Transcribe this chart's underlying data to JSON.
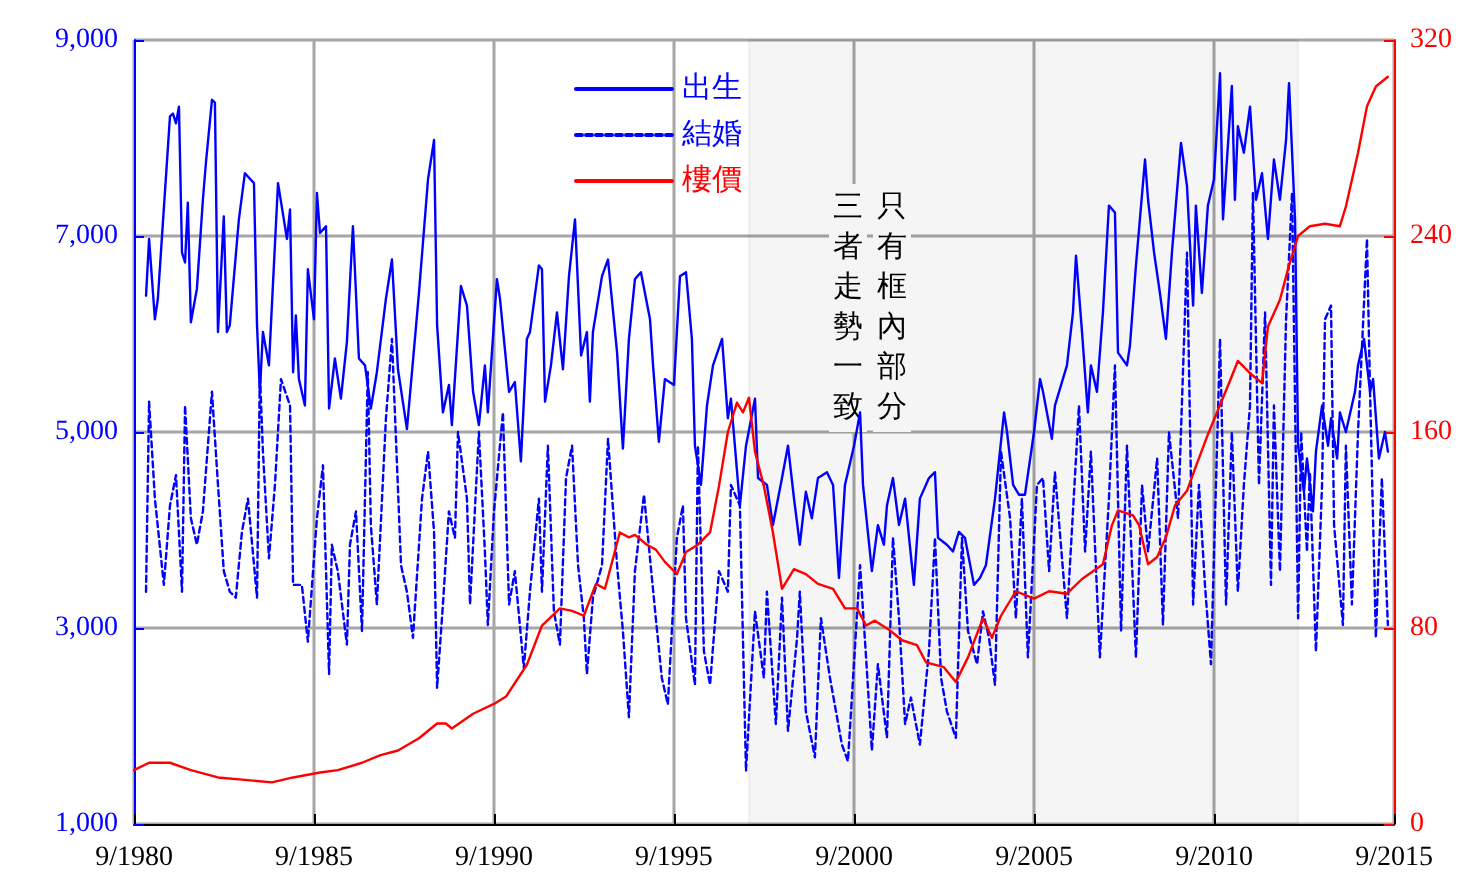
{
  "chart_data": {
    "type": "line",
    "marker": "none",
    "grid": true,
    "legend": "top",
    "xlim": [
      "1980-09",
      "2015-09"
    ],
    "xticks": [
      {
        "value": "1980-09",
        "label": "9/1980"
      },
      {
        "value": "1985-09",
        "label": "9/1985"
      },
      {
        "value": "1990-09",
        "label": "9/1990"
      },
      {
        "value": "1995-09",
        "label": "9/1995"
      },
      {
        "value": "2000-09",
        "label": "9/2000"
      },
      {
        "value": "2005-09",
        "label": "9/2005"
      },
      {
        "value": "2010-09",
        "label": "9/2010"
      },
      {
        "value": "2015-09",
        "label": "9/2015"
      }
    ],
    "ylim": [
      1000,
      9000
    ],
    "yticks": [
      {
        "value": 1000,
        "label": "1,000"
      },
      {
        "value": 3000,
        "label": "3,000"
      },
      {
        "value": 5000,
        "label": "5,000"
      },
      {
        "value": 7000,
        "label": "7,000"
      },
      {
        "value": 9000,
        "label": "9,000"
      }
    ],
    "y2lim": [
      0,
      320
    ],
    "y2ticks": [
      0,
      80,
      160,
      240,
      320
    ],
    "bands": [
      {
        "axis": "x",
        "from": "1997-10",
        "to": "2013-01",
        "color": "#000000"
      }
    ],
    "annotations": [
      "只有框內部分",
      "三者走勢一致"
    ],
    "series": [
      {
        "name": "出生",
        "color": "#0000ff",
        "x": [
          "1981-01",
          "1981-02",
          "1981-04",
          "1981-05",
          "1981-09",
          "1981-10",
          "1981-11",
          "1981-12",
          "1982-01",
          "1982-02",
          "1982-03",
          "1982-04",
          "1982-06",
          "1982-08",
          "1982-09",
          "1982-11",
          "1982-12",
          "1983-01",
          "1983-03",
          "1983-04",
          "1983-05",
          "1983-08",
          "1983-10",
          "1984-01",
          "1984-02",
          "1984-03",
          "1984-04",
          "1984-06",
          "1984-07",
          "1984-09",
          "1984-12",
          "1985-01",
          "1985-02",
          "1985-03",
          "1985-04",
          "1985-06",
          "1985-07",
          "1985-09",
          "1985-10",
          "1985-11",
          "1986-01",
          "1986-02",
          "1986-04",
          "1986-06",
          "1986-08",
          "1986-10",
          "1986-12",
          "1987-02",
          "1987-04",
          "1987-06",
          "1987-09",
          "1987-11",
          "1988-01",
          "1988-04",
          "1988-08",
          "1988-11",
          "1989-01",
          "1989-02",
          "1989-04",
          "1989-06",
          "1989-07",
          "1989-10",
          "1989-12",
          "1990-02",
          "1990-04",
          "1990-06",
          "1990-07",
          "1990-10",
          "1990-11",
          "1991-02",
          "1991-04",
          "1991-06",
          "1991-08",
          "1991-09",
          "1991-12",
          "1992-01",
          "1992-02",
          "1992-04",
          "1992-06",
          "1992-08",
          "1992-10",
          "1992-12",
          "1993-02",
          "1993-04",
          "1993-05",
          "1993-06",
          "1993-09",
          "1993-11",
          "1994-02",
          "1994-04",
          "1994-06",
          "1994-08",
          "1994-10",
          "1995-01",
          "1995-02",
          "1995-04",
          "1995-06",
          "1995-09",
          "1995-11",
          "1996-01",
          "1996-03",
          "1996-04",
          "1996-06",
          "1996-08",
          "1996-10",
          "1997-01",
          "1997-03",
          "1997-04",
          "1997-07",
          "1997-09",
          "1997-12",
          "1998-01",
          "1998-04",
          "1998-06",
          "1998-09",
          "1998-11",
          "1999-01",
          "1999-03",
          "1999-05",
          "1999-07",
          "1999-09",
          "1999-12",
          "2000-02",
          "2000-04",
          "2000-06",
          "2000-09",
          "2000-11",
          "2000-12",
          "2001-03",
          "2001-05",
          "2001-07",
          "2001-08",
          "2001-10",
          "2001-12",
          "2002-02",
          "2002-05",
          "2002-07",
          "2002-10",
          "2002-12",
          "2003-01",
          "2003-04",
          "2003-06",
          "2003-08",
          "2003-10",
          "2004-01",
          "2004-03",
          "2004-05",
          "2004-08",
          "2004-11",
          "2004-12",
          "2005-02",
          "2005-04",
          "2005-06",
          "2005-09",
          "2005-11",
          "2005-12",
          "2006-03",
          "2006-04",
          "2006-08",
          "2006-10",
          "2006-11",
          "2007-01",
          "2007-03",
          "2007-04",
          "2007-06",
          "2007-08",
          "2007-10",
          "2007-12",
          "2008-01",
          "2008-04",
          "2008-05",
          "2008-07",
          "2008-10",
          "2008-11",
          "2009-01",
          "2009-03",
          "2009-05",
          "2009-07",
          "2009-10",
          "2009-12",
          "2010-02",
          "2010-03",
          "2010-05",
          "2010-07",
          "2010-09",
          "2010-11",
          "2010-12",
          "2011-03",
          "2011-04",
          "2011-05",
          "2011-07",
          "2011-09",
          "2011-11",
          "2012-01",
          "2012-03",
          "2012-05",
          "2012-07",
          "2012-09",
          "2012-10",
          "2012-12",
          "2013-01",
          "2013-03",
          "2013-04",
          "2013-06",
          "2013-07",
          "2013-09",
          "2013-11",
          "2013-12",
          "2014-02",
          "2014-03",
          "2014-05",
          "2014-08",
          "2014-09",
          "2014-11",
          "2015-01",
          "2015-02",
          "2015-04",
          "2015-06",
          "2015-07"
        ],
        "values": [
          6390,
          6970,
          6150,
          6360,
          8220,
          8250,
          8150,
          8320,
          6830,
          6730,
          7340,
          6120,
          6460,
          7370,
          7750,
          8390,
          8360,
          6020,
          7200,
          6020,
          6090,
          7170,
          7640,
          7540,
          6090,
          5410,
          6020,
          5680,
          6290,
          7540,
          6970,
          7270,
          5610,
          6190,
          5540,
          5270,
          6660,
          6150,
          7440,
          7030,
          7100,
          5240,
          5750,
          5340,
          5920,
          7100,
          5750,
          5680,
          5240,
          5610,
          6360,
          6760,
          5640,
          5030,
          6420,
          7580,
          7980,
          6090,
          5200,
          5480,
          5070,
          6490,
          6290,
          5410,
          5070,
          5680,
          5200,
          6560,
          6360,
          5410,
          5510,
          4700,
          5950,
          6020,
          6700,
          6660,
          5310,
          5680,
          6220,
          5640,
          6590,
          7170,
          5780,
          6020,
          5310,
          6020,
          6590,
          6760,
          5810,
          4830,
          5950,
          6560,
          6630,
          6150,
          5680,
          4900,
          5540,
          5480,
          6590,
          6630,
          5950,
          4860,
          4460,
          5270,
          5680,
          5950,
          5140,
          5340,
          4250,
          4860,
          5340,
          4530,
          4460,
          4050,
          4530,
          4860,
          4320,
          3850,
          4390,
          4120,
          4530,
          4590,
          4460,
          3510,
          4460,
          4860,
          5200,
          4460,
          3580,
          4050,
          3850,
          4250,
          4530,
          4050,
          4320,
          3440,
          4320,
          4530,
          4590,
          3920,
          3850,
          3780,
          3980,
          3920,
          3440,
          3510,
          3640,
          4320,
          5200,
          5000,
          4460,
          4360,
          4360,
          5000,
          5540,
          5410,
          4930,
          5270,
          5680,
          6220,
          6800,
          6020,
          5200,
          5680,
          5410,
          6220,
          7310,
          7240,
          5810,
          5680,
          5880,
          6700,
          7780,
          7370,
          6830,
          6420,
          5950,
          6830,
          7950,
          7510,
          6290,
          7310,
          6420,
          7310,
          7580,
          8660,
          7170,
          8530,
          7370,
          8120,
          7850,
          8320,
          7370,
          7640,
          6970,
          7780,
          7370,
          7980,
          8560,
          7170,
          4860,
          4390,
          4730,
          4190,
          4800,
          5270,
          4860,
          5140,
          4730,
          5200,
          5000,
          5410,
          5680,
          5950,
          5410,
          5540,
          4730,
          5000,
          4800
        ]
      },
      {
        "name": "結婚",
        "color": "#0000ff",
        "line_style": "dashed",
        "x": [
          "1981-01",
          "1981-02",
          "1981-04",
          "1981-07",
          "1981-09",
          "1981-11",
          "1982-01",
          "1982-02",
          "1982-04",
          "1982-06",
          "1982-08",
          "1982-11",
          "1983-01",
          "1983-03",
          "1983-05",
          "1983-07",
          "1983-09",
          "1983-11",
          "1984-02",
          "1984-03",
          "1984-04",
          "1984-06",
          "1984-08",
          "1984-10",
          "1985-01",
          "1985-02",
          "1985-05",
          "1985-07",
          "1985-10",
          "1985-12",
          "1986-02",
          "1986-03",
          "1986-05",
          "1986-08",
          "1986-09",
          "1986-11",
          "1987-01",
          "1987-03",
          "1987-04",
          "1987-06",
          "1987-09",
          "1987-11",
          "1988-02",
          "1988-04",
          "1988-06",
          "1988-09",
          "1988-11",
          "1989-01",
          "1989-02",
          "1989-04",
          "1989-06",
          "1989-08",
          "1989-09",
          "1989-12",
          "1990-01",
          "1990-04",
          "1990-06",
          "1990-07",
          "1990-09",
          "1990-12",
          "1991-02",
          "1991-04",
          "1991-07",
          "1991-09",
          "1991-12",
          "1992-01",
          "1992-03",
          "1992-05",
          "1992-07",
          "1992-09",
          "1992-11",
          "1993-01",
          "1993-03",
          "1993-04",
          "1993-06",
          "1993-09",
          "1993-11",
          "1994-02",
          "1994-04",
          "1994-06",
          "1994-08",
          "1994-11",
          "1995-01",
          "1995-03",
          "1995-05",
          "1995-07",
          "1995-10",
          "1995-12",
          "1996-01",
          "1996-04",
          "1996-05",
          "1996-07",
          "1996-09",
          "1996-12",
          "1997-03",
          "1997-04",
          "1997-07",
          "1997-09",
          "1997-12",
          "1998-03",
          "1998-04",
          "1998-07",
          "1998-09",
          "1998-11",
          "1999-02",
          "1999-03",
          "1999-05",
          "1999-08",
          "1999-10",
          "2000-01",
          "2000-05",
          "2000-07",
          "2000-11",
          "2001-01",
          "2001-03",
          "2001-05",
          "2001-08",
          "2001-10",
          "2001-12",
          "2002-02",
          "2002-04",
          "2002-07",
          "2002-10",
          "2002-12",
          "2003-02",
          "2003-04",
          "2003-07",
          "2003-09",
          "2003-11",
          "2004-02",
          "2004-04",
          "2004-06",
          "2004-08",
          "2004-10",
          "2005-01",
          "2005-03",
          "2005-05",
          "2005-07",
          "2005-10",
          "2005-12",
          "2006-02",
          "2006-04",
          "2006-08",
          "2006-10",
          "2006-12",
          "2007-02",
          "2007-04",
          "2007-07",
          "2007-10",
          "2007-12",
          "2008-02",
          "2008-04",
          "2008-07",
          "2008-09",
          "2008-11",
          "2009-02",
          "2009-04",
          "2009-06",
          "2009-09",
          "2009-12",
          "2010-02",
          "2010-04",
          "2010-06",
          "2010-08",
          "2010-11",
          "2011-01",
          "2011-03",
          "2011-05",
          "2011-07",
          "2011-09",
          "2011-10",
          "2011-12",
          "2012-02",
          "2012-04",
          "2012-05",
          "2012-07",
          "2012-09",
          "2012-11",
          "2013-01",
          "2013-02",
          "2013-04",
          "2013-05",
          "2013-07",
          "2013-09",
          "2013-10",
          "2013-12",
          "2014-01",
          "2014-04",
          "2014-05",
          "2014-07",
          "2014-09",
          "2014-12",
          "2015-01",
          "2015-03",
          "2015-05",
          "2015-07"
        ],
        "values": [
          3370,
          5310,
          4320,
          3440,
          4250,
          4560,
          3370,
          5270,
          4120,
          3850,
          4190,
          5410,
          4460,
          3580,
          3370,
          3310,
          3980,
          4320,
          3310,
          5610,
          4800,
          3710,
          4460,
          5540,
          5270,
          3440,
          3440,
          2860,
          4120,
          4660,
          2530,
          3850,
          3580,
          2830,
          3850,
          4190,
          2970,
          5610,
          4050,
          3240,
          5140,
          5950,
          3640,
          3370,
          2900,
          4320,
          4800,
          3980,
          2390,
          3240,
          4190,
          3920,
          5000,
          4320,
          3240,
          5000,
          3780,
          3030,
          4190,
          5200,
          3240,
          3580,
          2590,
          3370,
          4320,
          3370,
          4860,
          3170,
          2830,
          4530,
          4860,
          3640,
          3100,
          2530,
          3310,
          3640,
          4930,
          3640,
          2970,
          2090,
          3580,
          4360,
          3710,
          3100,
          2490,
          2220,
          3920,
          4250,
          3100,
          2420,
          4860,
          2760,
          2420,
          3580,
          3370,
          4460,
          4250,
          1540,
          3170,
          2490,
          3370,
          2020,
          3310,
          1950,
          2900,
          3370,
          2150,
          1680,
          3100,
          2490,
          1810,
          1640,
          3640,
          2700,
          1750,
          2630,
          1880,
          3920,
          3100,
          2020,
          2290,
          1810,
          2760,
          3920,
          2490,
          2150,
          1880,
          3920,
          2970,
          2630,
          3170,
          2900,
          2420,
          4800,
          4120,
          3100,
          4320,
          2700,
          4460,
          4530,
          3580,
          4590,
          3100,
          4190,
          5270,
          3780,
          4800,
          2700,
          4320,
          5680,
          2970,
          4860,
          2700,
          4460,
          3780,
          4730,
          3030,
          5000,
          4120,
          6830,
          3240,
          4460,
          3440,
          2630,
          5950,
          3240,
          5000,
          3370,
          4460,
          5270,
          7440,
          4460,
          6220,
          3440,
          5270,
          3580,
          6150,
          7440,
          3100,
          5000,
          3780,
          4590,
          2760,
          4460,
          6150,
          6290,
          4050,
          3030,
          4860,
          3240,
          5000,
          6970,
          5410,
          2900,
          4530,
          3030
        ]
      },
      {
        "name": "樓價",
        "color": "#ff0000",
        "axis": "y2",
        "x": [
          "1980-09",
          "1981-02",
          "1981-09",
          "1982-04",
          "1983-01",
          "1983-10",
          "1984-07",
          "1985-02",
          "1985-11",
          "1986-05",
          "1987-01",
          "1987-07",
          "1988-01",
          "1988-08",
          "1989-02",
          "1989-05",
          "1989-07",
          "1990-02",
          "1990-09",
          "1991-01",
          "1991-08",
          "1992-01",
          "1992-07",
          "1992-11",
          "1993-03",
          "1993-07",
          "1993-10",
          "1994-03",
          "1994-06",
          "1994-08",
          "1994-12",
          "1995-03",
          "1995-06",
          "1995-10",
          "1996-01",
          "1996-05",
          "1996-09",
          "1996-12",
          "1997-03",
          "1997-06",
          "1997-08",
          "1997-10",
          "1997-12",
          "1998-03",
          "1998-06",
          "1998-09",
          "1999-01",
          "1999-05",
          "1999-09",
          "2000-02",
          "2000-06",
          "2000-10",
          "2001-01",
          "2001-04",
          "2001-09",
          "2002-01",
          "2002-06",
          "2002-09",
          "2003-03",
          "2003-07",
          "2003-11",
          "2004-04",
          "2004-07",
          "2004-10",
          "2005-03",
          "2005-09",
          "2006-02",
          "2006-08",
          "2007-01",
          "2007-08",
          "2007-11",
          "2008-01",
          "2008-06",
          "2008-08",
          "2008-11",
          "2009-02",
          "2009-05",
          "2009-08",
          "2009-12",
          "2010-03",
          "2010-07",
          "2010-11",
          "2011-02",
          "2011-05",
          "2011-09",
          "2012-01",
          "2012-03",
          "2012-07",
          "2012-10",
          "2013-01",
          "2013-05",
          "2013-10",
          "2014-03",
          "2014-05",
          "2014-09",
          "2014-12",
          "2015-03",
          "2015-07"
        ],
        "values": [
          22,
          25,
          25,
          22,
          19,
          18,
          17,
          19,
          21,
          22,
          25,
          28,
          30,
          35,
          41,
          41,
          39,
          45,
          49,
          52,
          65,
          81,
          88,
          87,
          85,
          98,
          96,
          119,
          117,
          118,
          114,
          112,
          107,
          102,
          111,
          114,
          119,
          138,
          160,
          172,
          168,
          174,
          152,
          138,
          119,
          96,
          104,
          102,
          98,
          96,
          88,
          88,
          81,
          83,
          79,
          75,
          73,
          66,
          64,
          58,
          68,
          84,
          76,
          85,
          95,
          92,
          95,
          94,
          100,
          106,
          122,
          128,
          126,
          122,
          106,
          109,
          117,
          130,
          136,
          146,
          159,
          171,
          180,
          189,
          184,
          180,
          203,
          214,
          228,
          240,
          244,
          245,
          244,
          252,
          274,
          293,
          301,
          305
        ]
      }
    ]
  }
}
